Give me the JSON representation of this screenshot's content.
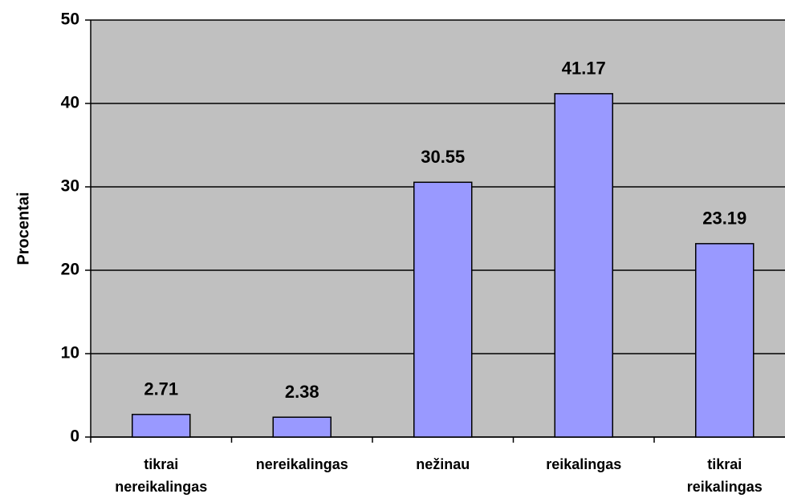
{
  "chart_data": {
    "type": "bar",
    "categories": [
      "tikrai nereikalingas",
      "nereikalingas",
      "nežinau",
      "reikalingas",
      "tikrai reikalingas"
    ],
    "values": [
      2.71,
      2.38,
      30.55,
      41.17,
      23.19
    ],
    "color": "#9999ff",
    "ylabel": "Procentai",
    "ylim": [
      0,
      50
    ],
    "yticks": [
      0,
      10,
      20,
      30,
      40,
      50
    ],
    "grid": true
  }
}
